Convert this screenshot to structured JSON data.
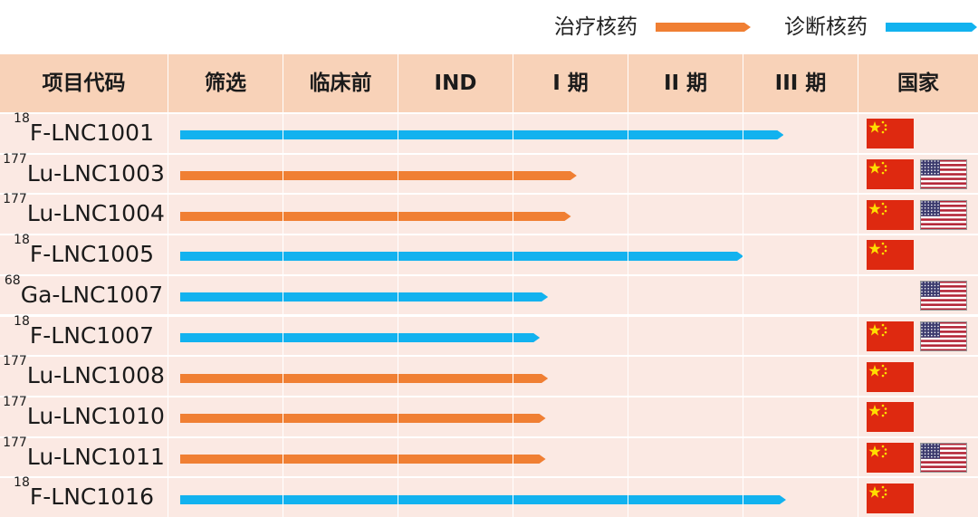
{
  "legend": {
    "therapeutic": {
      "label": "治疗核药",
      "color": "#f07f33"
    },
    "diagnostic": {
      "label": "诊断核药",
      "color": "#12b2ef"
    }
  },
  "header": {
    "code": "项目代码",
    "screening": "筛选",
    "preclinical": "临床前",
    "ind": "IND",
    "phase1": "I 期",
    "phase2": "II 期",
    "phase3": "III 期",
    "country": "国家"
  },
  "chart_data": {
    "type": "table",
    "stages": [
      "筛选",
      "临床前",
      "IND",
      "I 期",
      "II 期",
      "III 期"
    ],
    "value_scale": "stage progress (1 = end of 筛选 column, 6 = end of III 期 column)",
    "rows": [
      {
        "isotope": "18",
        "name": "F-LNC1001",
        "kind": "diagnostic",
        "progress": 5.35,
        "flags": [
          "china-flag-icon"
        ]
      },
      {
        "isotope": "177",
        "name": "Lu-LNC1003",
        "kind": "therapeutic",
        "progress": 3.55,
        "flags": [
          "china-flag-icon",
          "usa-flag-icon"
        ]
      },
      {
        "isotope": "177",
        "name": "Lu-LNC1004",
        "kind": "therapeutic",
        "progress": 3.5,
        "flags": [
          "china-flag-icon",
          "usa-flag-icon"
        ]
      },
      {
        "isotope": "18",
        "name": "F-LNC1005",
        "kind": "diagnostic",
        "progress": 5.0,
        "flags": [
          "china-flag-icon"
        ]
      },
      {
        "isotope": "68",
        "name": "Ga-LNC1007",
        "kind": "diagnostic",
        "progress": 3.3,
        "flags": [
          "usa-flag-icon"
        ]
      },
      {
        "isotope": "18",
        "name": "F-LNC1007",
        "kind": "diagnostic",
        "progress": 3.23,
        "flags": [
          "china-flag-icon",
          "usa-flag-icon"
        ]
      },
      {
        "isotope": "177",
        "name": "Lu-LNC1008",
        "kind": "therapeutic",
        "progress": 3.3,
        "flags": [
          "china-flag-icon"
        ]
      },
      {
        "isotope": "177",
        "name": "Lu-LNC1010",
        "kind": "therapeutic",
        "progress": 3.28,
        "flags": [
          "china-flag-icon"
        ]
      },
      {
        "isotope": "177",
        "name": "Lu-LNC1011",
        "kind": "therapeutic",
        "progress": 3.28,
        "flags": [
          "china-flag-icon",
          "usa-flag-icon"
        ]
      },
      {
        "isotope": "18",
        "name": "F-LNC1016",
        "kind": "diagnostic",
        "progress": 5.37,
        "flags": [
          "china-flag-icon"
        ]
      }
    ]
  }
}
